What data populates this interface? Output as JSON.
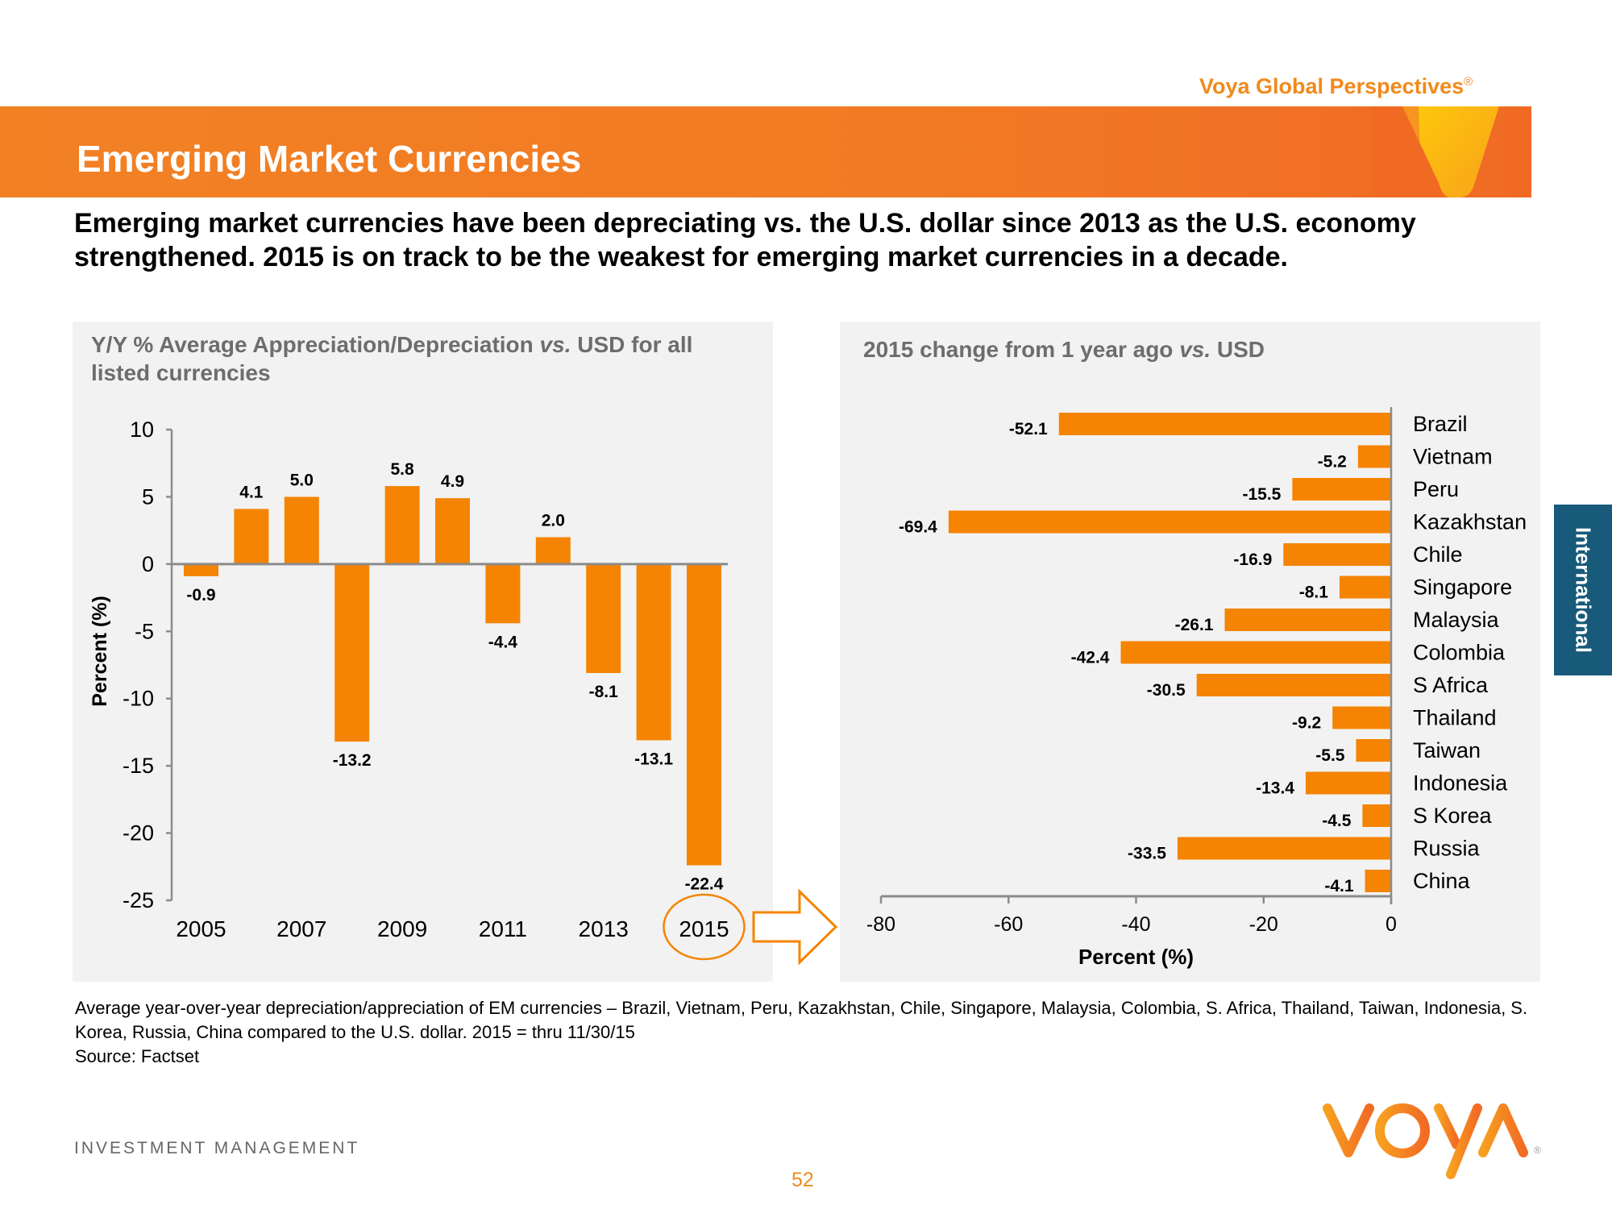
{
  "header": {
    "brand_text": "Voya Global Perspectives",
    "brand_mark": "®",
    "title": "Emerging Market Currencies",
    "subtitle": "Emerging market currencies have  been depreciating vs. the U.S. dollar since 2013 as the U.S. economy strengthened. 2015 is on track to be the weakest for emerging market currencies in a decade."
  },
  "side_tab": {
    "label": "International",
    "color": "#175a7a"
  },
  "colors": {
    "accent": "#f28124",
    "bar": "#f58402",
    "axis": "#8c8c8c",
    "panel": "#f2f2f2"
  },
  "left_panel": {
    "title_part1": "Y/Y %  Average Appreciation/Depreciation ",
    "title_italic": "vs.",
    "title_part2": " USD for all listed currencies",
    "highlight_year": "2015"
  },
  "right_panel": {
    "title_part1": "2015 change from 1 year ago ",
    "title_italic": "vs.",
    "title_part2": " USD"
  },
  "chart_data": [
    {
      "type": "bar",
      "title": "Y/Y % Average Appreciation/Depreciation vs. USD for all listed currencies",
      "xlabel": "",
      "ylabel": "Percent (%)",
      "categories": [
        "2005",
        "2006",
        "2007",
        "2008",
        "2009",
        "2010",
        "2011",
        "2012",
        "2013",
        "2014",
        "2015"
      ],
      "values": [
        -0.9,
        4.1,
        5.0,
        -13.2,
        5.8,
        4.9,
        -4.4,
        2.0,
        -8.1,
        -13.1,
        -22.4
      ],
      "data_labels": [
        "-0.9",
        "4.1",
        "5.0",
        "-13.2",
        "5.8",
        "4.9",
        "-4.4",
        "2.0",
        "-8.1",
        "-13.1",
        "-22.4"
      ],
      "x_tick_labels": [
        "2005",
        "2007",
        "2009",
        "2011",
        "2013",
        "2015"
      ],
      "y_ticks": [
        10,
        5,
        0,
        -5,
        -10,
        -15,
        -20,
        -25
      ],
      "ylim": [
        -25,
        10
      ],
      "grid": false,
      "legend": "none",
      "annotation": "2015 circled with arrow pointing to right chart"
    },
    {
      "type": "bar",
      "orientation": "horizontal",
      "title": "2015 change from 1 year ago vs. USD",
      "xlabel": "Percent (%)",
      "ylabel": "",
      "categories": [
        "Brazil",
        "Vietnam",
        "Peru",
        "Kazakhstan",
        "Chile",
        "Singapore",
        "Malaysia",
        "Colombia",
        "S Africa",
        "Thailand",
        "Taiwan",
        "Indonesia",
        "S Korea",
        "Russia",
        "China"
      ],
      "values": [
        -52.1,
        -5.2,
        -15.5,
        -69.4,
        -16.9,
        -8.1,
        -26.1,
        -42.4,
        -30.5,
        -9.2,
        -5.5,
        -13.4,
        -4.5,
        -33.5,
        -4.1
      ],
      "data_labels": [
        "-52.1",
        "-5.2",
        "-15.5",
        "-69.4",
        "-16.9",
        "-8.1",
        "-26.1",
        "-42.4",
        "-30.5",
        "-9.2",
        "-5.5",
        "-13.4",
        "-4.5",
        "-33.5",
        "-4.1"
      ],
      "x_ticks": [
        -80,
        -60,
        -40,
        -20,
        0
      ],
      "x_tick_labels": [
        "-80",
        "-60",
        "-40",
        "-20",
        "0"
      ],
      "xlim": [
        -80,
        0
      ],
      "grid": false,
      "legend": "none"
    }
  ],
  "footnote": {
    "line1": "Average year-over-year depreciation/appreciation of  EM currencies – Brazil, Vietnam, Peru, Kazakhstan, Chile, Singapore, Malaysia, Colombia, S. Africa, Thailand, Taiwan, Indonesia, S. Korea, Russia, China compared to the U.S. dollar.  2015 = thru 11/30/15",
    "source": "Source: Factset"
  },
  "footer": {
    "brand": "INVESTMENT MANAGEMENT",
    "page_number": "52",
    "logo_text": "VOYA",
    "logo_mark": "®"
  }
}
